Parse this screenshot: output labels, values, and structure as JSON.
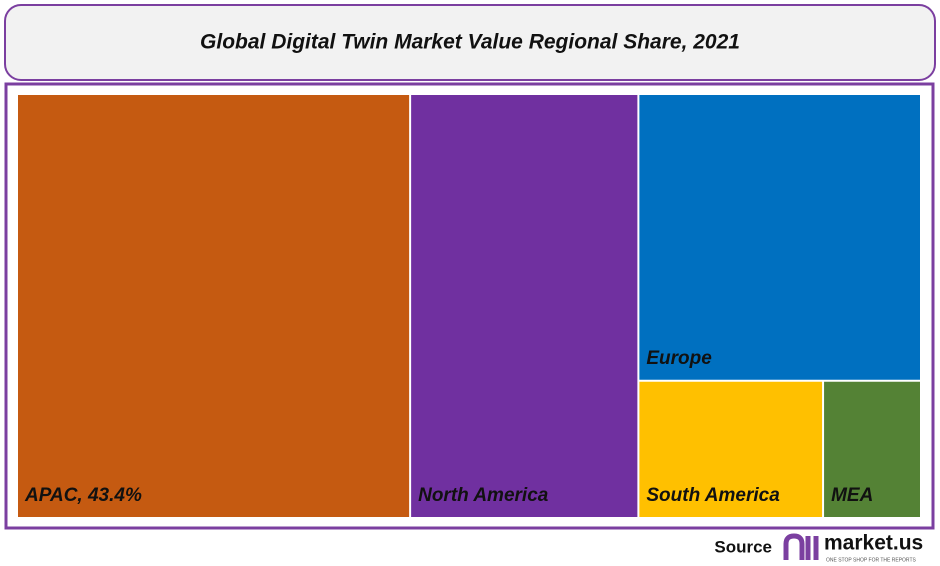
{
  "chart_data": {
    "type": "treemap",
    "title": "Global Digital Twin Market Value Regional Share, 2021",
    "labels": [
      "APAC, 43.4%",
      "North America",
      "Europe",
      "South America",
      "MEA"
    ],
    "values": [
      43.4,
      25.2,
      21.1,
      6.6,
      3.5
    ],
    "colors": [
      "#c55a11",
      "#7030a0",
      "#0070c0",
      "#ffc000",
      "#548235"
    ]
  },
  "footer": {
    "source": "Source",
    "logo": "market.us",
    "tagline": "ONE STOP SHOP FOR THE REPORTS"
  }
}
